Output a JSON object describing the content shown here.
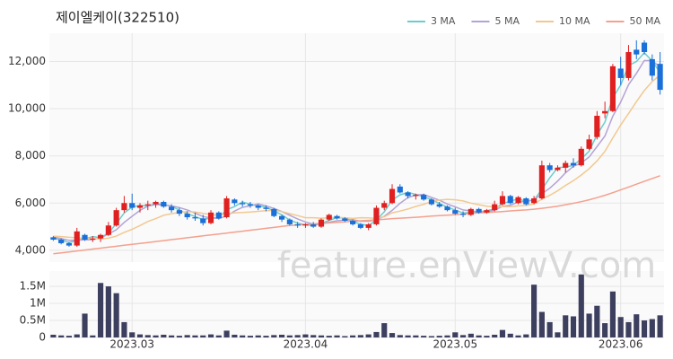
{
  "chart_data": {
    "type": "candlestick",
    "title": "제이엘케이(322510)",
    "watermark": "feature.enViewV.com",
    "up_color": "#e02020",
    "down_color": "#1a6fd8",
    "grid": true,
    "legend": "top-right",
    "categories": [
      null,
      null,
      null,
      null,
      null,
      null,
      null,
      null,
      null,
      null,
      "2023.03",
      null,
      null,
      null,
      null,
      null,
      null,
      null,
      null,
      null,
      null,
      null,
      null,
      null,
      null,
      null,
      null,
      null,
      null,
      null,
      null,
      null,
      "2023.04",
      null,
      null,
      null,
      null,
      null,
      null,
      null,
      null,
      null,
      null,
      null,
      null,
      null,
      null,
      null,
      null,
      null,
      null,
      "2023.05",
      null,
      null,
      null,
      null,
      null,
      null,
      null,
      null,
      null,
      null,
      null,
      null,
      null,
      null,
      null,
      null,
      null,
      null,
      null,
      null,
      "2023.06",
      null,
      null,
      null,
      null,
      null
    ],
    "open": [
      4550,
      4450,
      4300,
      4200,
      4650,
      4450,
      4500,
      4650,
      5050,
      5700,
      6000,
      5800,
      5900,
      5950,
      6050,
      5850,
      5700,
      5550,
      5400,
      5350,
      5150,
      5600,
      5400,
      6150,
      6000,
      5950,
      5900,
      5800,
      5750,
      5450,
      5300,
      5100,
      5050,
      5100,
      5000,
      5300,
      5450,
      5350,
      5250,
      5100,
      4950,
      5100,
      5800,
      6000,
      6700,
      6450,
      6300,
      6350,
      6150,
      5950,
      5850,
      5700,
      5550,
      5500,
      5750,
      5600,
      5700,
      5950,
      6300,
      6000,
      6200,
      6000,
      6200,
      7600,
      7400,
      7500,
      7700,
      7600,
      8300,
      8800,
      9800,
      9900,
      11700,
      11300,
      12500,
      12800,
      12100,
      11900
    ],
    "high": [
      4600,
      4500,
      4350,
      4950,
      4700,
      4600,
      4700,
      5200,
      5800,
      6300,
      6400,
      6000,
      6100,
      6100,
      6100,
      5950,
      5800,
      5650,
      5600,
      5500,
      5700,
      5650,
      6300,
      6200,
      6100,
      6050,
      5950,
      5900,
      5800,
      5500,
      5350,
      5200,
      5150,
      5200,
      5350,
      5550,
      5500,
      5400,
      5300,
      5150,
      5150,
      5900,
      6100,
      6800,
      6800,
      6500,
      6400,
      6400,
      6200,
      6050,
      5900,
      5800,
      5650,
      5800,
      5800,
      5750,
      6100,
      6500,
      6350,
      6300,
      6250,
      6300,
      7800,
      7700,
      7600,
      7800,
      7900,
      8400,
      8900,
      9900,
      10300,
      11900,
      12200,
      12700,
      12900,
      12900,
      12300,
      12400
    ],
    "low": [
      4400,
      4250,
      4150,
      4150,
      4400,
      4350,
      4350,
      4600,
      5000,
      5600,
      5700,
      5600,
      5700,
      5800,
      5800,
      5600,
      5450,
      5300,
      5250,
      5050,
      5100,
      5300,
      5350,
      5900,
      5850,
      5800,
      5700,
      5650,
      5400,
      5200,
      5050,
      4950,
      4950,
      4950,
      4950,
      5250,
      5300,
      5200,
      5050,
      4900,
      4850,
      5050,
      5700,
      5950,
      6400,
      6200,
      6150,
      6100,
      5900,
      5800,
      5650,
      5500,
      5400,
      5450,
      5550,
      5550,
      5650,
      5900,
      5950,
      5950,
      5900,
      5950,
      6150,
      7300,
      7350,
      7300,
      7500,
      7550,
      8250,
      8700,
      9600,
      9850,
      11000,
      11200,
      12100,
      12300,
      11200,
      10600
    ],
    "close": [
      4450,
      4300,
      4200,
      4800,
      4450,
      4500,
      4650,
      5050,
      5700,
      6000,
      5800,
      5900,
      5950,
      6050,
      5850,
      5700,
      5550,
      5400,
      5350,
      5150,
      5600,
      5350,
      6200,
      6000,
      5950,
      5900,
      5800,
      5750,
      5450,
      5300,
      5100,
      5050,
      5100,
      5000,
      5300,
      5500,
      5350,
      5250,
      5100,
      4950,
      5100,
      5800,
      6000,
      6600,
      6450,
      6300,
      6350,
      6150,
      5950,
      5850,
      5700,
      5550,
      5500,
      5750,
      5600,
      5700,
      5950,
      6300,
      6000,
      6250,
      5950,
      6200,
      7600,
      7400,
      7500,
      7700,
      7600,
      8300,
      8700,
      9700,
      9900,
      11800,
      11300,
      12400,
      12300,
      12400,
      11400,
      10800
    ],
    "series": [
      {
        "name": "3 MA",
        "color": "#6ccccc",
        "values": [
          4500,
          4450,
          4320,
          4430,
          4480,
          4580,
          4530,
          4730,
          5130,
          5580,
          5830,
          5900,
          5880,
          5970,
          5950,
          5870,
          5700,
          5550,
          5430,
          5300,
          5370,
          5370,
          5720,
          5850,
          6050,
          5950,
          5880,
          5820,
          5670,
          5500,
          5280,
          5150,
          5080,
          5050,
          5130,
          5270,
          5380,
          5370,
          5230,
          5100,
          5050,
          5280,
          5630,
          6130,
          6350,
          6450,
          6370,
          6270,
          6150,
          5980,
          5830,
          5700,
          5580,
          5600,
          5620,
          5680,
          5750,
          5980,
          6080,
          6180,
          6070,
          6130,
          6580,
          7070,
          7500,
          7530,
          7600,
          7870,
          8200,
          8900,
          9430,
          10470,
          11000,
          11830,
          12000,
          12370,
          12030,
          11530
        ]
      },
      {
        "name": "5 MA",
        "color": "#b3a3d6",
        "values": [
          4550,
          4500,
          4420,
          4430,
          4440,
          4450,
          4520,
          4690,
          4870,
          5180,
          5440,
          5690,
          5870,
          5940,
          5910,
          5890,
          5810,
          5710,
          5570,
          5430,
          5370,
          5350,
          5450,
          5660,
          5820,
          5880,
          5970,
          5880,
          5770,
          5640,
          5480,
          5330,
          5200,
          5110,
          5110,
          5190,
          5250,
          5280,
          5300,
          5230,
          5230,
          5290,
          5440,
          5690,
          5990,
          6230,
          6340,
          6370,
          6240,
          6120,
          5960,
          5840,
          5710,
          5670,
          5620,
          5620,
          5700,
          5860,
          5910,
          6040,
          6080,
          6140,
          6400,
          6630,
          6930,
          7280,
          7560,
          7700,
          7960,
          8400,
          8840,
          9680,
          10280,
          11020,
          11500,
          12040,
          12040,
          11760
        ]
      },
      {
        "name": "10 MA",
        "color": "#f2c891",
        "values": [
          4600,
          4580,
          4550,
          4530,
          4500,
          4480,
          4480,
          4510,
          4600,
          4760,
          4890,
          5050,
          5220,
          5340,
          5480,
          5550,
          5600,
          5640,
          5620,
          5560,
          5520,
          5470,
          5550,
          5590,
          5600,
          5620,
          5650,
          5680,
          5700,
          5640,
          5550,
          5470,
          5380,
          5380,
          5360,
          5380,
          5390,
          5380,
          5350,
          5380,
          5370,
          5350,
          5420,
          5590,
          5660,
          5750,
          5860,
          5950,
          6060,
          6130,
          6160,
          6140,
          6090,
          6000,
          5930,
          5870,
          5830,
          5850,
          5850,
          5880,
          5900,
          5960,
          6170,
          6330,
          6520,
          6750,
          6950,
          7190,
          7460,
          7790,
          8190,
          8760,
          9310,
          9800,
          10300,
          10770,
          11150,
          11430
        ]
      },
      {
        "name": "50 MA",
        "color": "#f4a08e",
        "values": [
          3850,
          3890,
          3930,
          3970,
          4010,
          4050,
          4090,
          4130,
          4170,
          4210,
          4250,
          4290,
          4330,
          4370,
          4410,
          4450,
          4490,
          4530,
          4570,
          4610,
          4650,
          4690,
          4730,
          4770,
          4810,
          4850,
          4890,
          4930,
          4970,
          5010,
          5050,
          5070,
          5090,
          5120,
          5140,
          5160,
          5180,
          5200,
          5230,
          5250,
          5270,
          5290,
          5310,
          5340,
          5360,
          5380,
          5400,
          5420,
          5450,
          5470,
          5490,
          5510,
          5530,
          5560,
          5580,
          5600,
          5620,
          5640,
          5670,
          5690,
          5710,
          5740,
          5780,
          5820,
          5870,
          5930,
          5990,
          6060,
          6140,
          6230,
          6330,
          6440,
          6560,
          6680,
          6800,
          6920,
          7040,
          7160
        ]
      }
    ],
    "ylim": [
      3500,
      13200
    ],
    "yticks": [
      {
        "value": 4000,
        "label": "4,000"
      },
      {
        "value": 6000,
        "label": "6,000"
      },
      {
        "value": 8000,
        "label": "8,000"
      },
      {
        "value": 10000,
        "label": "10,000"
      },
      {
        "value": 12000,
        "label": "12,000"
      }
    ],
    "volume": {
      "color": "#3d3f5f",
      "values": [
        80000,
        60000,
        50000,
        90000,
        700000,
        60000,
        1600000,
        1500000,
        1300000,
        450000,
        150000,
        90000,
        70000,
        60000,
        80000,
        60000,
        50000,
        70000,
        60000,
        60000,
        90000,
        60000,
        200000,
        80000,
        60000,
        50000,
        60000,
        50000,
        70000,
        80000,
        60000,
        70000,
        90000,
        70000,
        60000,
        50000,
        60000,
        40000,
        60000,
        70000,
        90000,
        160000,
        420000,
        130000,
        70000,
        60000,
        60000,
        50000,
        40000,
        50000,
        60000,
        150000,
        70000,
        110000,
        60000,
        50000,
        80000,
        220000,
        110000,
        60000,
        90000,
        1550000,
        750000,
        450000,
        150000,
        650000,
        620000,
        1850000,
        700000,
        930000,
        420000,
        1350000,
        600000,
        450000,
        680000,
        500000,
        540000,
        650000
      ],
      "ylim": [
        0,
        1950000
      ],
      "yticks": [
        0,
        {
          "value": 500000,
          "label": "0.5M"
        },
        {
          "value": 1000000,
          "label": "1M"
        },
        {
          "value": 1500000,
          "label": "1.5M"
        }
      ]
    }
  }
}
